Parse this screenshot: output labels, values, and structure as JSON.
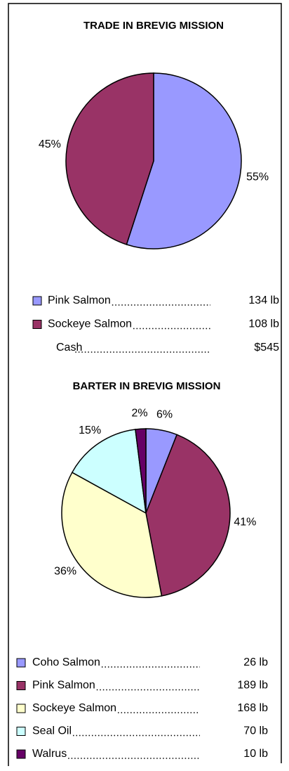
{
  "chart_data": [
    {
      "type": "pie",
      "title": "TRADE IN BREVIG MISSION",
      "categories": [
        "Pink Salmon",
        "Sockeye Salmon"
      ],
      "values": [
        55,
        45
      ],
      "value_labels": [
        "55%",
        "45%"
      ],
      "colors": [
        "#9999ff",
        "#993366"
      ],
      "amounts": [
        "134 lb",
        "108 lb"
      ],
      "extra_rows": [
        {
          "label": "Cash",
          "amount": "$545"
        }
      ]
    },
    {
      "type": "pie",
      "title": "BARTER IN BREVIG MISSION",
      "categories": [
        "Coho Salmon",
        "Pink Salmon",
        "Sockeye Salmon",
        "Seal Oil",
        "Walrus"
      ],
      "values": [
        6,
        41,
        36,
        15,
        2
      ],
      "value_labels": [
        "6%",
        "41%",
        "36%",
        "15%",
        "2%"
      ],
      "colors": [
        "#9999ff",
        "#993366",
        "#ffffcc",
        "#ccffff",
        "#660066"
      ],
      "amounts": [
        "26 lb",
        "189 lb",
        "168 lb",
        "70 lb",
        "10 lb"
      ]
    }
  ]
}
